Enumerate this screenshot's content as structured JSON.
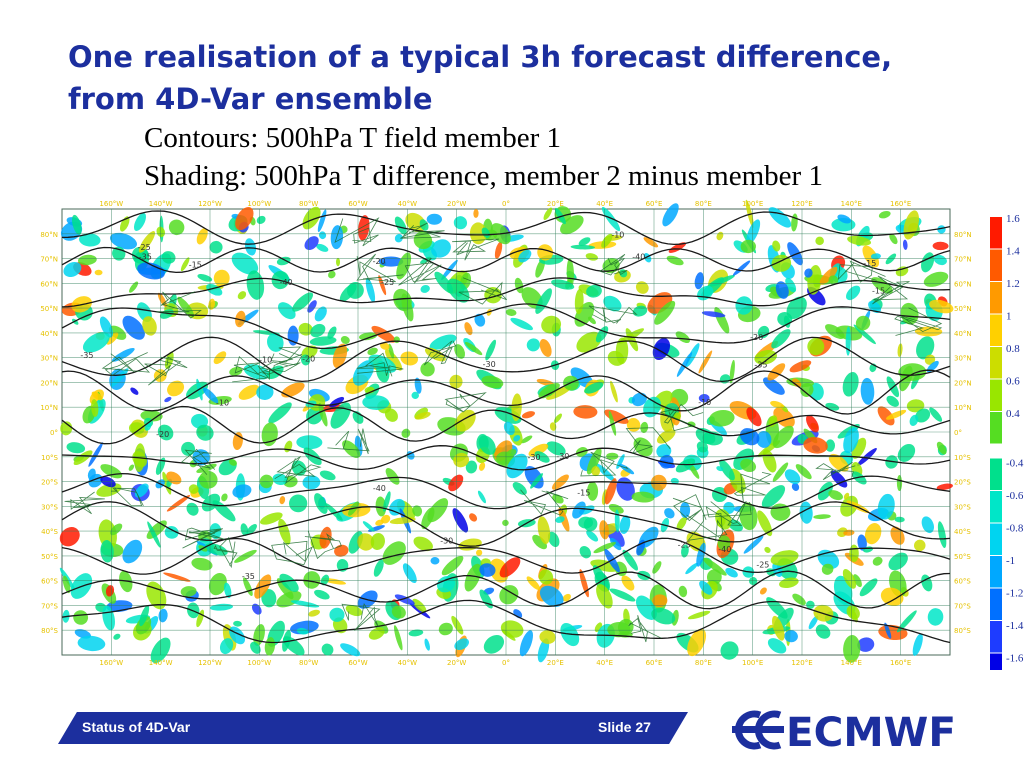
{
  "slide": {
    "title": "One realisation of a typical 3h forecast difference, from 4D-Var ensemble",
    "subtitle_contours": "Contours: 500hPa T field member 1",
    "subtitle_shading": "Shading: 500hPa T difference, member 2 minus member 1"
  },
  "map": {
    "lon_labels": [
      "160°W",
      "140°W",
      "120°W",
      "100°W",
      "80°W",
      "60°W",
      "40°W",
      "20°W",
      "0°",
      "20°E",
      "40°E",
      "60°E",
      "80°E",
      "100°E",
      "120°E",
      "140°E",
      "160°E"
    ],
    "lat_labels": [
      "80°N",
      "70°N",
      "60°N",
      "50°N",
      "40°N",
      "30°N",
      "20°N",
      "10°N",
      "0°",
      "10°S",
      "20°S",
      "30°S",
      "40°S",
      "50°S",
      "60°S",
      "70°S",
      "80°S"
    ],
    "contour_labels": [
      "-30",
      "-25",
      "-20",
      "-15",
      "-10",
      "-40",
      "-35"
    ],
    "colors": {
      "axis_label": "#e6c200",
      "grid": "#2f7f5a",
      "contour": "#1a1a1a",
      "coastline": "#1a6a2a"
    }
  },
  "legend": {
    "entries": [
      {
        "label": "1.6",
        "color": "#ff1a00"
      },
      {
        "label": "1.4",
        "color": "#ff5a00"
      },
      {
        "label": "1.2",
        "color": "#ff9a00"
      },
      {
        "label": "1",
        "color": "#ffd000"
      },
      {
        "label": "0.8",
        "color": "#ccdd00"
      },
      {
        "label": "0.6",
        "color": "#99e600"
      },
      {
        "label": "0.4",
        "color": "#55dd22"
      },
      {
        "label": "-0.4",
        "color": "#00e08c"
      },
      {
        "label": "-0.6",
        "color": "#00e6c8"
      },
      {
        "label": "-0.8",
        "color": "#00d4f0"
      },
      {
        "label": "-1",
        "color": "#00a8ff"
      },
      {
        "label": "-1.2",
        "color": "#0070ff"
      },
      {
        "label": "-1.4",
        "color": "#1e3cff"
      },
      {
        "label": "-1.6",
        "color": "#0000e6"
      }
    ]
  },
  "footer": {
    "left_text": "Status of 4D-Var",
    "right_text": "Slide 27"
  },
  "logo": {
    "text": "ECMWF",
    "color": "#1c2f9e"
  }
}
